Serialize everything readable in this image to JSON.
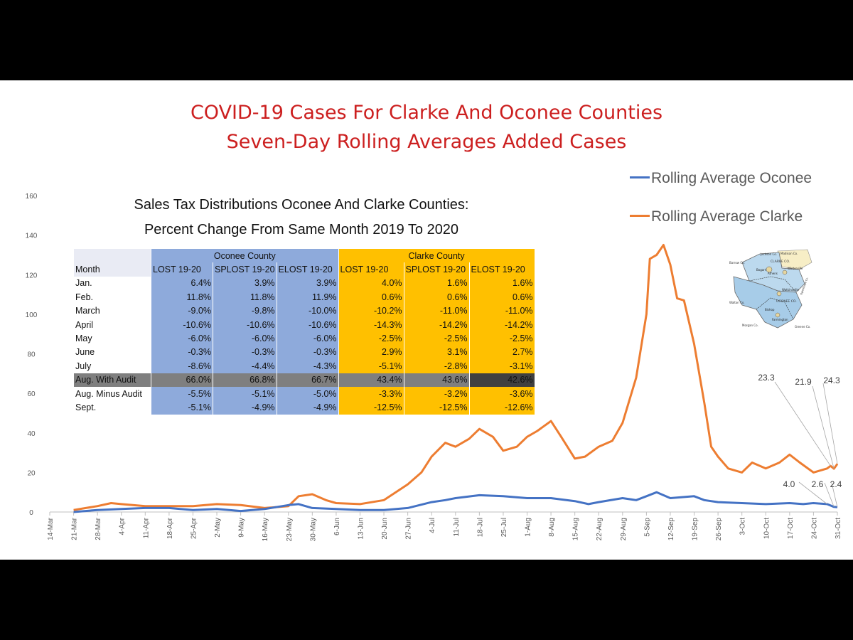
{
  "titles": {
    "line1": "COVID-19 Cases For Clarke And Oconee Counties",
    "line2": "Seven-Day Rolling Averages Added Cases"
  },
  "legend": {
    "oconee": "Rolling Average Oconee",
    "clarke": "Rolling Average Clarke"
  },
  "colors": {
    "oconee": "#4472c4",
    "clarke": "#ed7d31",
    "title": "#cc1f1f",
    "oconee_cells": "#8eaadb",
    "clarke_cells": "#ffc000"
  },
  "chart_data": {
    "type": "line",
    "title": "COVID-19 Cases For Clarke And Oconee Counties Seven-Day Rolling Averages Added Cases",
    "x_start": "14-Mar",
    "x_end": "31-Oct",
    "x_ticks": [
      "14-Mar",
      "21-Mar",
      "28-Mar",
      "4-Apr",
      "11-Apr",
      "18-Apr",
      "25-Apr",
      "2-May",
      "9-May",
      "16-May",
      "23-May",
      "30-May",
      "6-Jun",
      "13-Jun",
      "20-Jun",
      "27-Jun",
      "4-Jul",
      "11-Jul",
      "18-Jul",
      "25-Jul",
      "1-Aug",
      "8-Aug",
      "15-Aug",
      "22-Aug",
      "29-Aug",
      "5-Sep",
      "12-Sep",
      "19-Sep",
      "26-Sep",
      "3-Oct",
      "10-Oct",
      "17-Oct",
      "24-Oct",
      "31-Oct"
    ],
    "ylim": [
      0,
      160
    ],
    "y_ticks": [
      0,
      20,
      40,
      60,
      80,
      100,
      120,
      140,
      160
    ],
    "grid": false,
    "legend_position": "top-right",
    "series": [
      {
        "name": "Rolling Average Oconee",
        "points": [
          [
            "21-Mar",
            0
          ],
          [
            "28-Mar",
            1
          ],
          [
            "4-Apr",
            1.5
          ],
          [
            "11-Apr",
            2
          ],
          [
            "18-Apr",
            2
          ],
          [
            "25-Apr",
            1
          ],
          [
            "2-May",
            1.5
          ],
          [
            "9-May",
            0.5
          ],
          [
            "16-May",
            1.5
          ],
          [
            "23-May",
            3.5
          ],
          [
            "26-May",
            4
          ],
          [
            "30-May",
            2
          ],
          [
            "6-Jun",
            1.5
          ],
          [
            "13-Jun",
            1
          ],
          [
            "20-Jun",
            1
          ],
          [
            "27-Jun",
            2
          ],
          [
            "4-Jul",
            5
          ],
          [
            "8-Jul",
            6
          ],
          [
            "11-Jul",
            7
          ],
          [
            "18-Jul",
            8.5
          ],
          [
            "25-Jul",
            8
          ],
          [
            "1-Aug",
            7
          ],
          [
            "8-Aug",
            7
          ],
          [
            "15-Aug",
            5.5
          ],
          [
            "19-Aug",
            4
          ],
          [
            "22-Aug",
            5
          ],
          [
            "29-Aug",
            7
          ],
          [
            "2-Sep",
            6
          ],
          [
            "5-Sep",
            8
          ],
          [
            "8-Sep",
            10
          ],
          [
            "12-Sep",
            7
          ],
          [
            "19-Sep",
            8
          ],
          [
            "22-Sep",
            6
          ],
          [
            "26-Sep",
            5
          ],
          [
            "3-Oct",
            4.5
          ],
          [
            "10-Oct",
            4
          ],
          [
            "17-Oct",
            4.5
          ],
          [
            "21-Oct",
            4
          ],
          [
            "24-Oct",
            4.5
          ],
          [
            "28-Oct",
            4
          ],
          [
            "30-Oct",
            2.6
          ],
          [
            "31-Oct",
            2.4
          ]
        ]
      },
      {
        "name": "Rolling Average Clarke",
        "points": [
          [
            "21-Mar",
            1
          ],
          [
            "28-Mar",
            3
          ],
          [
            "1-Apr",
            4.5
          ],
          [
            "4-Apr",
            4
          ],
          [
            "11-Apr",
            3
          ],
          [
            "18-Apr",
            3
          ],
          [
            "25-Apr",
            3
          ],
          [
            "2-May",
            4
          ],
          [
            "9-May",
            3.5
          ],
          [
            "16-May",
            2
          ],
          [
            "23-May",
            3
          ],
          [
            "26-May",
            8
          ],
          [
            "30-May",
            9
          ],
          [
            "3-Jun",
            6
          ],
          [
            "6-Jun",
            4.5
          ],
          [
            "13-Jun",
            4
          ],
          [
            "20-Jun",
            6
          ],
          [
            "27-Jun",
            14
          ],
          [
            "1-Jul",
            20
          ],
          [
            "4-Jul",
            28
          ],
          [
            "8-Jul",
            35
          ],
          [
            "11-Jul",
            33
          ],
          [
            "15-Jul",
            37
          ],
          [
            "18-Jul",
            42
          ],
          [
            "22-Jul",
            38
          ],
          [
            "25-Jul",
            31
          ],
          [
            "29-Jul",
            33
          ],
          [
            "1-Aug",
            38
          ],
          [
            "4-Aug",
            41
          ],
          [
            "8-Aug",
            46
          ],
          [
            "11-Aug",
            38
          ],
          [
            "15-Aug",
            27
          ],
          [
            "18-Aug",
            28
          ],
          [
            "22-Aug",
            33
          ],
          [
            "26-Aug",
            36
          ],
          [
            "29-Aug",
            45
          ],
          [
            "2-Sep",
            68
          ],
          [
            "5-Sep",
            100
          ],
          [
            "6-Sep",
            128
          ],
          [
            "8-Sep",
            130
          ],
          [
            "10-Sep",
            135
          ],
          [
            "12-Sep",
            125
          ],
          [
            "14-Sep",
            108
          ],
          [
            "16-Sep",
            107
          ],
          [
            "19-Sep",
            85
          ],
          [
            "22-Sep",
            55
          ],
          [
            "24-Sep",
            33
          ],
          [
            "26-Sep",
            28
          ],
          [
            "29-Sep",
            22
          ],
          [
            "3-Oct",
            20
          ],
          [
            "6-Oct",
            25
          ],
          [
            "10-Oct",
            22
          ],
          [
            "14-Oct",
            25
          ],
          [
            "17-Oct",
            29
          ],
          [
            "20-Oct",
            25
          ],
          [
            "24-Oct",
            20
          ],
          [
            "28-Oct",
            22
          ],
          [
            "29-Oct",
            23.3
          ],
          [
            "30-Oct",
            21.9
          ],
          [
            "31-Oct",
            24.3
          ]
        ]
      }
    ],
    "annotations": [
      "23.3",
      "21.9",
      "24.3",
      "4.0",
      "2.6",
      "2.4"
    ]
  },
  "table": {
    "title_line1": "Sales Tax Distributions Oconee And Clarke Counties:",
    "title_line2": "Percent Change From Same Month 2019 To 2020",
    "oconee_header": "Oconee County",
    "clarke_header": "Clarke County",
    "columns": [
      "Month",
      "LOST 19-20",
      "SPLOST 19-20",
      "ELOST 19-20",
      "LOST 19-20",
      "SPLOST 19-20",
      "ELOST 19-20"
    ],
    "rows": [
      [
        "Jan.",
        "6.4%",
        "3.9%",
        "3.9%",
        "4.0%",
        "1.6%",
        "1.6%"
      ],
      [
        "Feb.",
        "11.8%",
        "11.8%",
        "11.9%",
        "0.6%",
        "0.6%",
        "0.6%"
      ],
      [
        "March",
        "-9.0%",
        "-9.8%",
        "-10.0%",
        "-10.2%",
        "-11.0%",
        "-11.0%"
      ],
      [
        "April",
        "-10.6%",
        "-10.6%",
        "-10.6%",
        "-14.3%",
        "-14.2%",
        "-14.2%"
      ],
      [
        "May",
        "-6.0%",
        "-6.0%",
        "-6.0%",
        "-2.5%",
        "-2.5%",
        "-2.5%"
      ],
      [
        "June",
        "-0.3%",
        "-0.3%",
        "-0.3%",
        "2.9%",
        "3.1%",
        "2.7%"
      ],
      [
        "July",
        "-8.6%",
        "-4.4%",
        "-4.3%",
        "-5.1%",
        "-2.8%",
        "-3.1%"
      ],
      [
        "Aug. With Audit",
        "66.0%",
        "66.8%",
        "66.7%",
        "43.4%",
        "43.6%",
        "42.6%"
      ],
      [
        "Aug. Minus Audit",
        "-5.5%",
        "-5.1%",
        "-5.0%",
        "-3.3%",
        "-3.2%",
        "-3.6%"
      ],
      [
        "Sept.",
        "-5.1%",
        "-4.9%",
        "-4.9%",
        "-12.5%",
        "-12.5%",
        "-12.6%"
      ]
    ]
  },
  "map": {
    "labels": [
      "Jackson Co.",
      "Madison Co.",
      "Barrow Co.",
      "CLARKE CO.",
      "Bogart",
      "Athens",
      "Winterville",
      "Watkinsville",
      "OCONEE CO.",
      "Walton Co.",
      "Bishop",
      "Farmington",
      "Oglethorpe Co.",
      "Morgan Co.",
      "Greene Co."
    ]
  }
}
